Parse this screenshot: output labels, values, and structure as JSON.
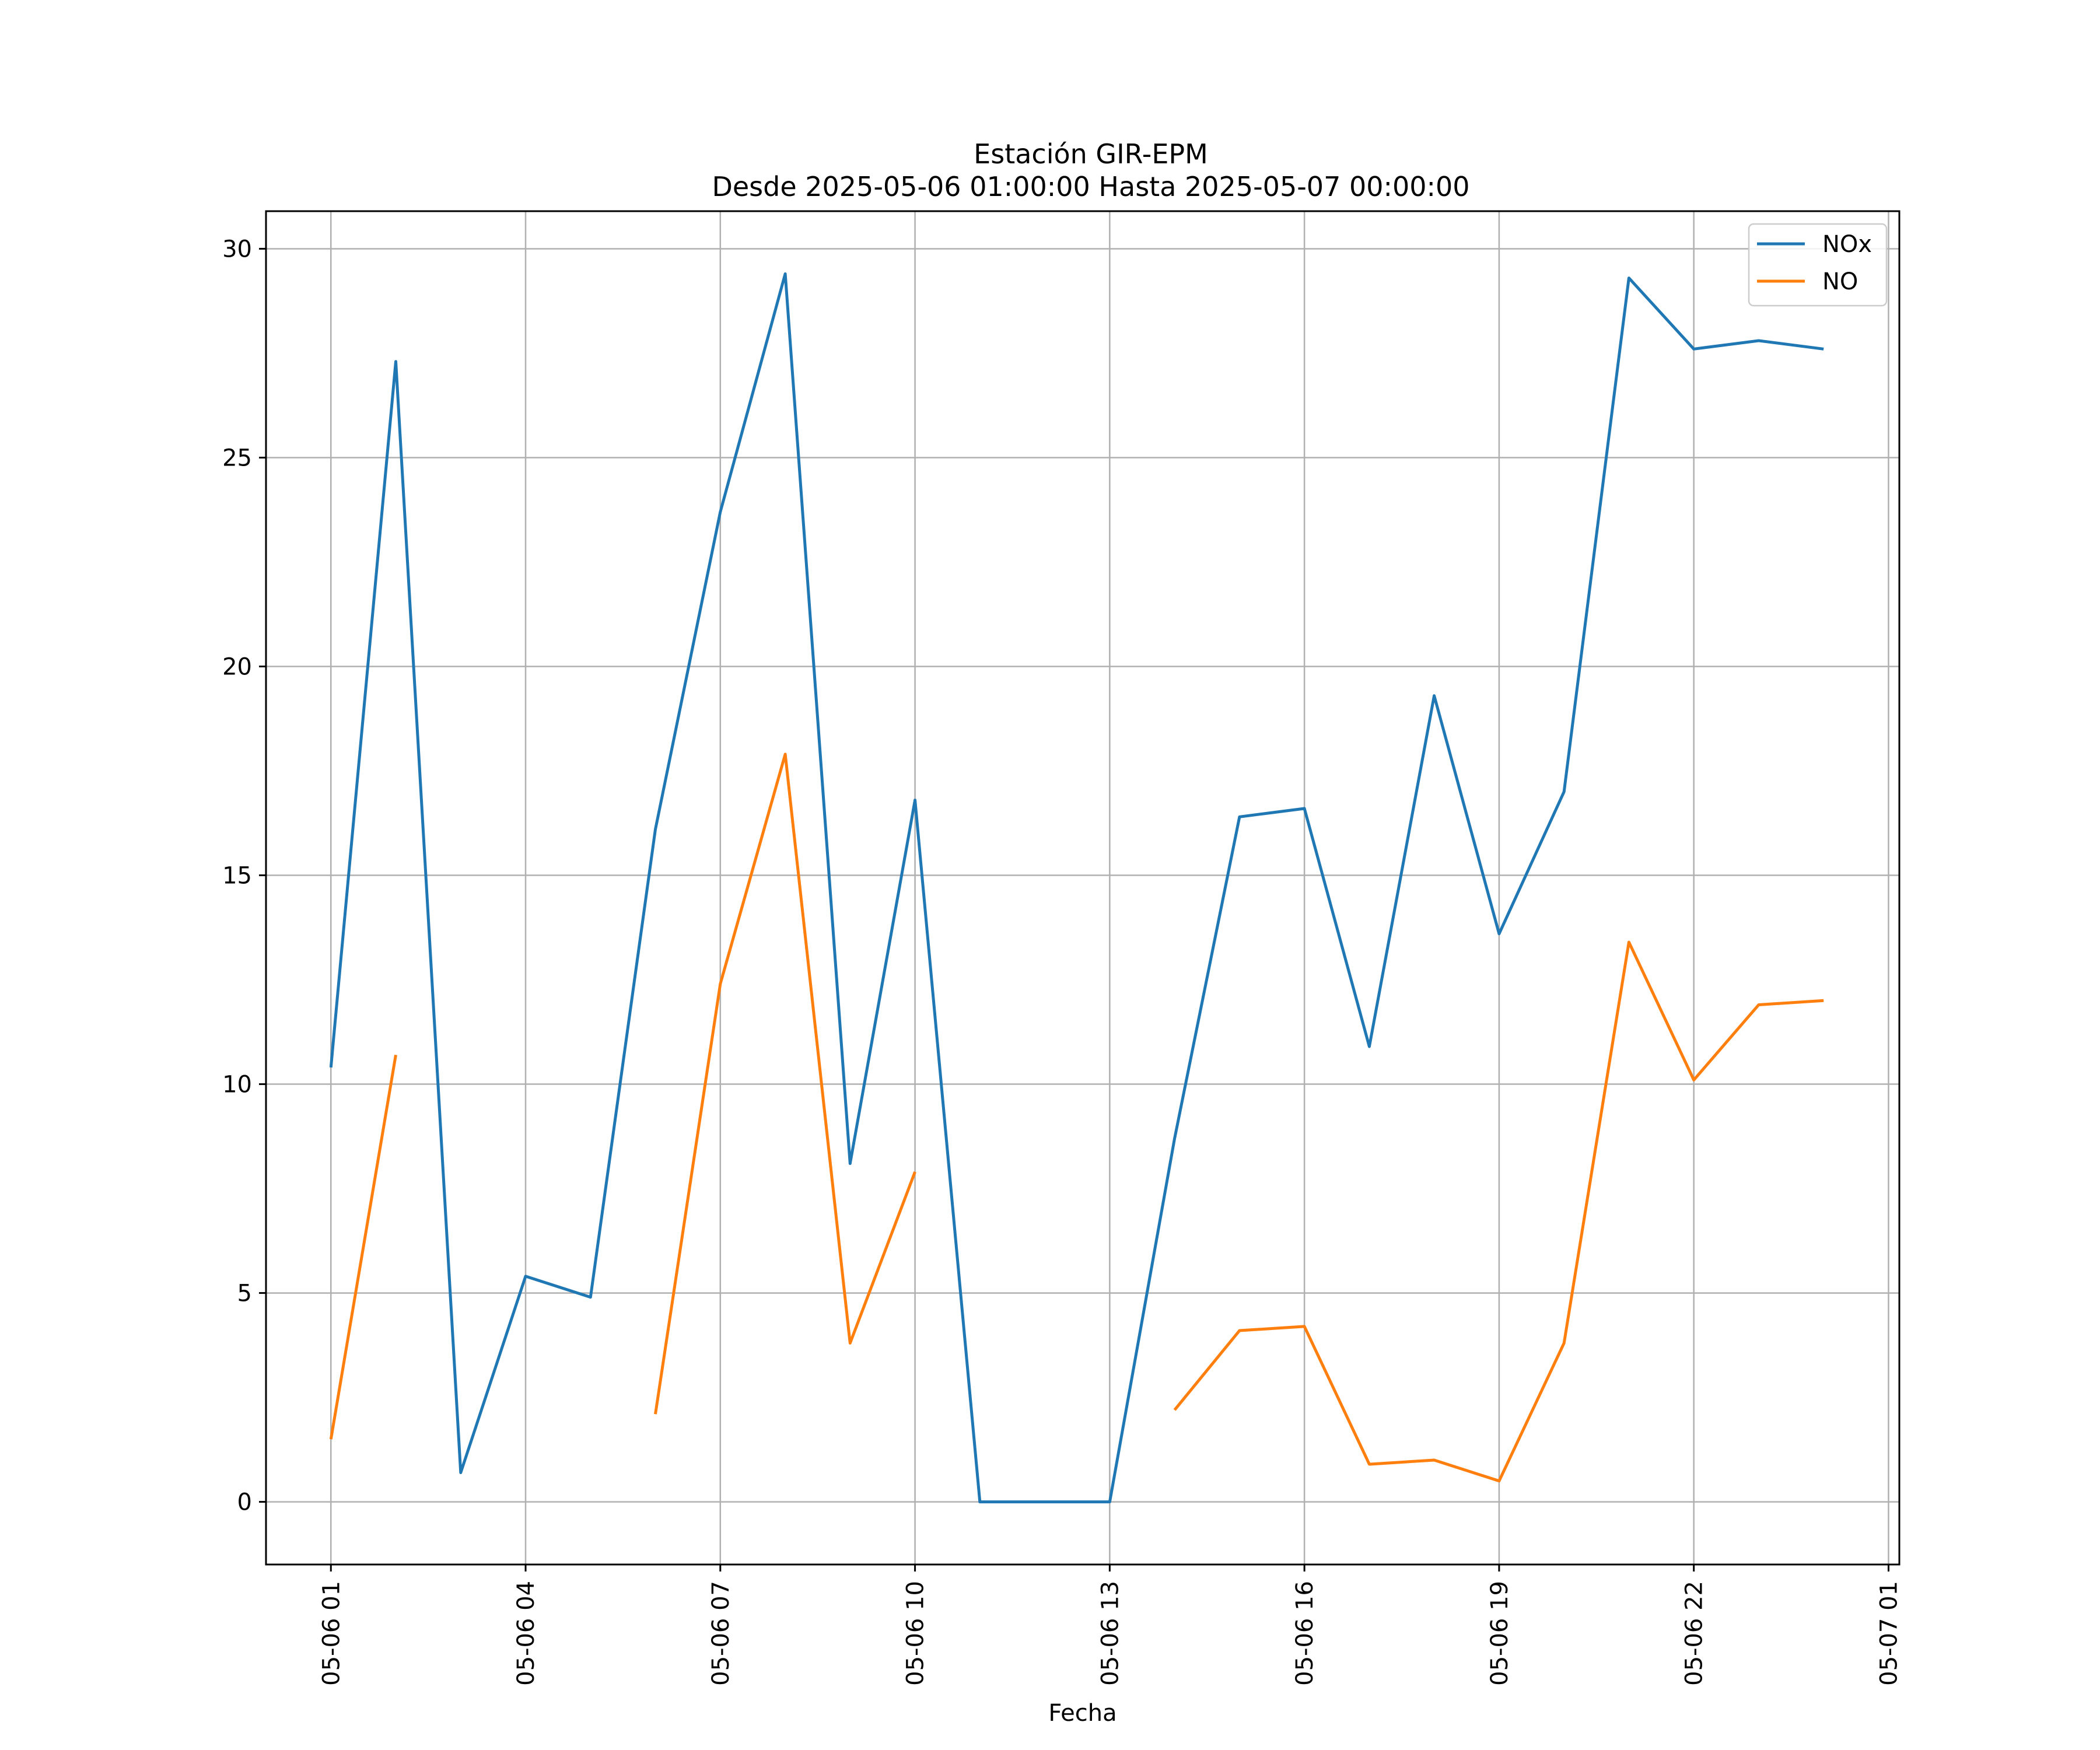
{
  "chart_data": {
    "type": "line",
    "title": "Estación GIR-EPM",
    "subtitle": "Desde 2025-05-06 01:00:00 Hasta 2025-05-07 00:00:00",
    "xlabel": "Fecha",
    "ylabel": "",
    "x": [
      "2025-05-06 01:00",
      "2025-05-06 02:00",
      "2025-05-06 03:00",
      "2025-05-06 04:00",
      "2025-05-06 05:00",
      "2025-05-06 06:00",
      "2025-05-06 07:00",
      "2025-05-06 08:00",
      "2025-05-06 09:00",
      "2025-05-06 10:00",
      "2025-05-06 11:00",
      "2025-05-06 12:00",
      "2025-05-06 13:00",
      "2025-05-06 14:00",
      "2025-05-06 15:00",
      "2025-05-06 16:00",
      "2025-05-06 17:00",
      "2025-05-06 18:00",
      "2025-05-06 19:00",
      "2025-05-06 20:00",
      "2025-05-06 21:00",
      "2025-05-06 22:00",
      "2025-05-06 23:00",
      "2025-05-07 00:00"
    ],
    "series": [
      {
        "name": "NOx",
        "color": "#1f77b4",
        "values": [
          10.4,
          27.3,
          0.7,
          5.4,
          4.9,
          16.1,
          23.7,
          29.4,
          8.1,
          16.8,
          0.0,
          0.0,
          0.0,
          8.7,
          16.4,
          16.6,
          10.9,
          19.3,
          13.6,
          17.0,
          29.3,
          27.6,
          27.8,
          27.6
        ]
      },
      {
        "name": "NO",
        "color": "#ff7f0e",
        "values": [
          1.5,
          10.7,
          null,
          null,
          null,
          2.1,
          12.4,
          17.9,
          3.8,
          7.9,
          null,
          null,
          null,
          2.2,
          4.1,
          4.2,
          0.9,
          1.0,
          0.5,
          3.8,
          13.4,
          10.1,
          11.9,
          12.0
        ]
      }
    ],
    "xticks": [
      "05-06 01",
      "05-06 04",
      "05-06 07",
      "05-06 10",
      "05-06 13",
      "05-06 16",
      "05-06 19",
      "05-06 22",
      "05-07 01"
    ],
    "yticks": [
      0,
      5,
      10,
      15,
      20,
      25,
      30
    ],
    "ylim": [
      -1.5,
      30.9
    ],
    "xlim": [
      "2025-05-06 00:00",
      "2025-05-07 01:10"
    ],
    "grid": true,
    "legend_position": "top-right"
  }
}
